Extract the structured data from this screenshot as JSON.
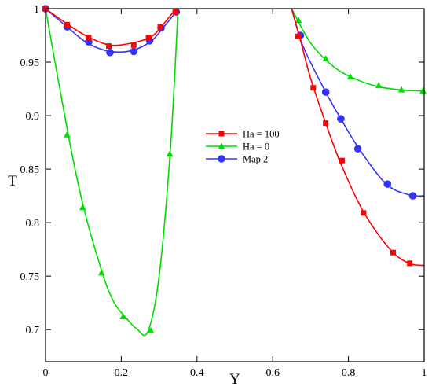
{
  "chart_data": {
    "type": "line",
    "title": "",
    "xlabel": "Y",
    "ylabel": "T",
    "xlim": [
      0,
      1
    ],
    "ylim": [
      0.67,
      1
    ],
    "grid": false,
    "legend_position": "center-right",
    "x_ticks": [
      {
        "value": 0,
        "label": "0"
      },
      {
        "value": 0.2,
        "label": "0.2"
      },
      {
        "value": 0.4,
        "label": "0.4"
      },
      {
        "value": 0.6,
        "label": "0.6"
      },
      {
        "value": 0.8,
        "label": "0.8"
      },
      {
        "value": 1,
        "label": "1"
      }
    ],
    "y_ticks": [
      {
        "value": 0.7,
        "label": "0.7"
      },
      {
        "value": 0.75,
        "label": "0.75"
      },
      {
        "value": 0.8,
        "label": "0.8"
      },
      {
        "value": 0.85,
        "label": "0.85"
      },
      {
        "value": 0.9,
        "label": "0.9"
      },
      {
        "value": 0.95,
        "label": "0.95"
      },
      {
        "value": 1,
        "label": "1"
      }
    ],
    "series": [
      {
        "name": "Ha = 100",
        "color": "#ff0000",
        "marker": "square",
        "segments": [
          {
            "line": [
              [
                0,
                1
              ],
              [
                0.06,
                0.985
              ],
              [
                0.11,
                0.974
              ],
              [
                0.17,
                0.966
              ],
              [
                0.23,
                0.968
              ],
              [
                0.28,
                0.974
              ],
              [
                0.31,
                0.985
              ],
              [
                0.34,
                0.998
              ]
            ],
            "markers": [
              [
                0,
                1
              ],
              [
                0.057,
                0.985
              ],
              [
                0.114,
                0.973
              ],
              [
                0.167,
                0.965
              ],
              [
                0.233,
                0.966
              ],
              [
                0.272,
                0.973
              ],
              [
                0.303,
                0.983
              ],
              [
                0.343,
                0.997
              ]
            ]
          },
          {
            "line": [
              [
                0.65,
                1
              ],
              [
                0.67,
                0.975
              ],
              [
                0.7,
                0.935
              ],
              [
                0.74,
                0.893
              ],
              [
                0.78,
                0.855
              ],
              [
                0.84,
                0.81
              ],
              [
                0.91,
                0.775
              ],
              [
                0.96,
                0.762
              ],
              [
                1,
                0.76
              ]
            ],
            "markers": [
              [
                0.667,
                0.974
              ],
              [
                0.707,
                0.926
              ],
              [
                0.74,
                0.893
              ],
              [
                0.783,
                0.858
              ],
              [
                0.84,
                0.809
              ],
              [
                0.918,
                0.772
              ],
              [
                0.962,
                0.762
              ]
            ]
          }
        ]
      },
      {
        "name": "Ha = 0",
        "color": "#00dd00",
        "marker": "triangle",
        "segments": [
          {
            "line": [
              [
                0,
                1
              ],
              [
                0.06,
                0.882
              ],
              [
                0.1,
                0.815
              ],
              [
                0.15,
                0.753
              ],
              [
                0.18,
                0.726
              ],
              [
                0.21,
                0.712
              ],
              [
                0.24,
                0.701
              ],
              [
                0.27,
                0.698
              ],
              [
                0.3,
                0.75
              ],
              [
                0.33,
                0.87
              ],
              [
                0.35,
                1
              ]
            ],
            "markers": [
              [
                0.057,
                0.882
              ],
              [
                0.098,
                0.814
              ],
              [
                0.148,
                0.753
              ],
              [
                0.205,
                0.712
              ],
              [
                0.278,
                0.699
              ],
              [
                0.328,
                0.864
              ]
            ]
          },
          {
            "line": [
              [
                0.65,
                1
              ],
              [
                0.7,
                0.968
              ],
              [
                0.76,
                0.946
              ],
              [
                0.82,
                0.934
              ],
              [
                0.88,
                0.927
              ],
              [
                0.94,
                0.924
              ],
              [
                1,
                0.923
              ]
            ],
            "markers": [
              [
                0.668,
                0.989
              ],
              [
                0.74,
                0.953
              ],
              [
                0.805,
                0.936
              ],
              [
                0.88,
                0.928
              ],
              [
                0.94,
                0.924
              ],
              [
                0.997,
                0.923
              ]
            ]
          }
        ]
      },
      {
        "name": "Map 2",
        "color": "#3333ff",
        "marker": "circle",
        "segments": [
          {
            "line": [
              [
                0,
                1
              ],
              [
                0.06,
                0.982
              ],
              [
                0.11,
                0.968
              ],
              [
                0.17,
                0.96
              ],
              [
                0.23,
                0.961
              ],
              [
                0.28,
                0.97
              ],
              [
                0.31,
                0.982
              ],
              [
                0.345,
                0.997
              ]
            ],
            "markers": [
              [
                0,
                1
              ],
              [
                0.057,
                0.983
              ],
              [
                0.114,
                0.969
              ],
              [
                0.17,
                0.959
              ],
              [
                0.233,
                0.96
              ],
              [
                0.275,
                0.97
              ],
              [
                0.305,
                0.982
              ],
              [
                0.345,
                0.997
              ]
            ]
          },
          {
            "line": [
              [
                0.65,
                1
              ],
              [
                0.68,
                0.965
              ],
              [
                0.74,
                0.922
              ],
              [
                0.78,
                0.897
              ],
              [
                0.83,
                0.868
              ],
              [
                0.9,
                0.836
              ],
              [
                0.96,
                0.826
              ],
              [
                1,
                0.825
              ]
            ],
            "markers": [
              [
                0.673,
                0.975
              ],
              [
                0.74,
                0.922
              ],
              [
                0.78,
                0.897
              ],
              [
                0.825,
                0.869
              ],
              [
                0.903,
                0.836
              ],
              [
                0.97,
                0.825
              ]
            ]
          }
        ]
      }
    ]
  }
}
